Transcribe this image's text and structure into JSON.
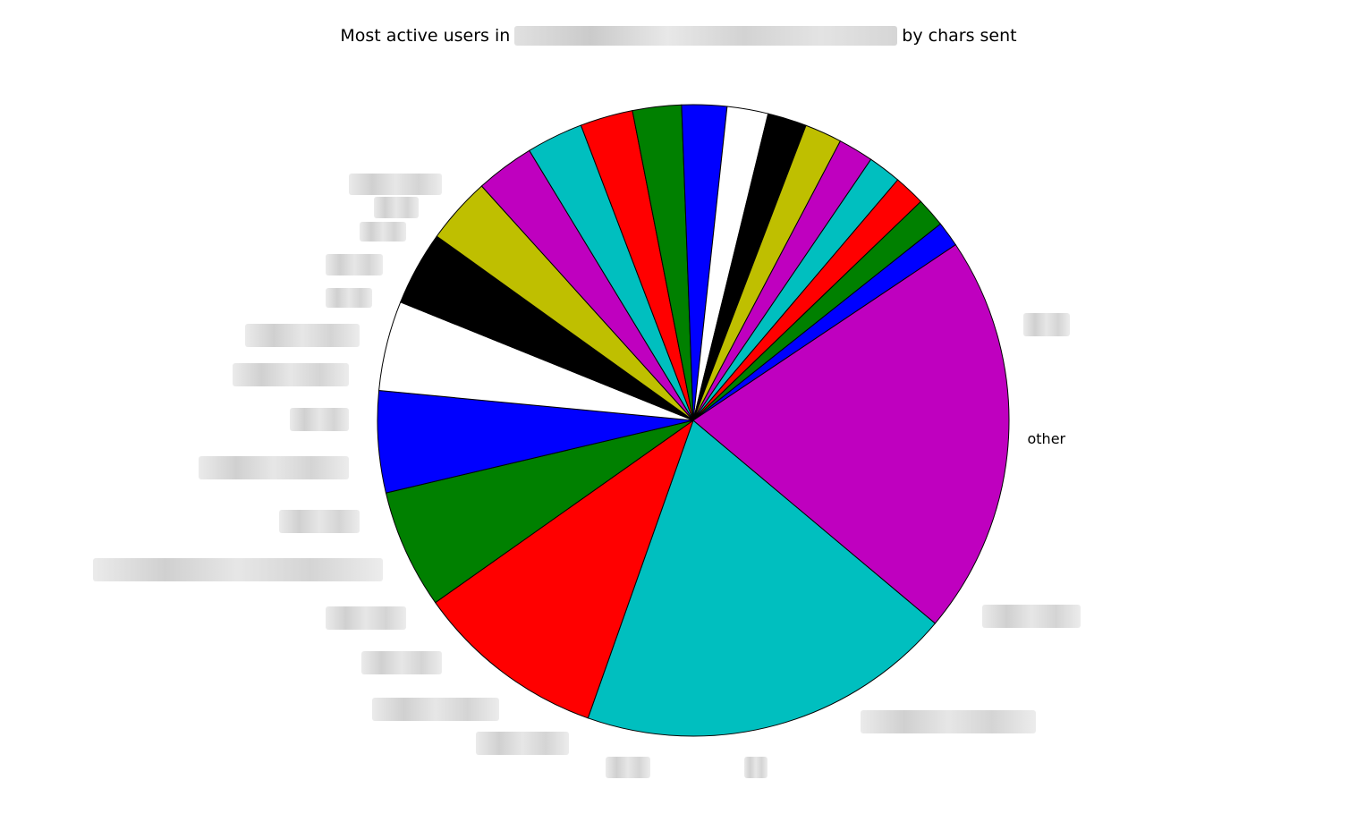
{
  "chart_data": {
    "type": "pie",
    "title_prefix": "Most active users in",
    "title_suffix": "by chars sent",
    "slices": [
      {
        "label": "",
        "value": 19.3,
        "color": "#00bfbf"
      },
      {
        "label": "",
        "value": 9.8,
        "color": "#ff0000"
      },
      {
        "label": "",
        "value": 6.1,
        "color": "#008000"
      },
      {
        "label": "",
        "value": 5.2,
        "color": "#0000ff"
      },
      {
        "label": "",
        "value": 4.6,
        "color": "#ffffff"
      },
      {
        "label": "",
        "value": 3.8,
        "color": "#000000"
      },
      {
        "label": "",
        "value": 3.4,
        "color": "#bfbf00"
      },
      {
        "label": "",
        "value": 3.0,
        "color": "#bf00bf"
      },
      {
        "label": "",
        "value": 2.9,
        "color": "#00bfbf"
      },
      {
        "label": "",
        "value": 2.7,
        "color": "#ff0000"
      },
      {
        "label": "",
        "value": 2.5,
        "color": "#008000"
      },
      {
        "label": "",
        "value": 2.3,
        "color": "#0000ff"
      },
      {
        "label": "",
        "value": 2.1,
        "color": "#ffffff"
      },
      {
        "label": "",
        "value": 2.0,
        "color": "#000000"
      },
      {
        "label": "",
        "value": 1.9,
        "color": "#bfbf00"
      },
      {
        "label": "",
        "value": 1.8,
        "color": "#bf00bf"
      },
      {
        "label": "",
        "value": 1.7,
        "color": "#00bfbf"
      },
      {
        "label": "",
        "value": 1.6,
        "color": "#ff0000"
      },
      {
        "label": "",
        "value": 1.5,
        "color": "#008000"
      },
      {
        "label": "",
        "value": 1.3,
        "color": "#0000ff"
      },
      {
        "label": "other",
        "value": 20.5,
        "color": "#bf00bf"
      }
    ]
  }
}
